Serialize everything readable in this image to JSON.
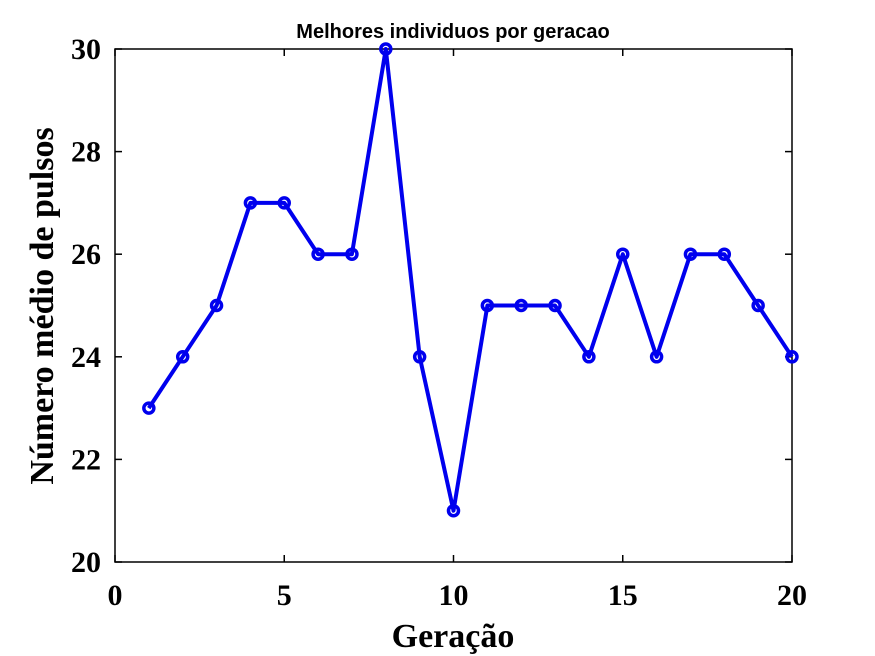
{
  "chart_data": {
    "type": "line",
    "title": "Melhores individuos por geracao",
    "xlabel": "Geração",
    "ylabel": "Número médio de pulsos",
    "xlim": [
      0,
      20
    ],
    "ylim": [
      20,
      30
    ],
    "xticks": [
      0,
      5,
      10,
      15,
      20
    ],
    "yticks": [
      20,
      22,
      24,
      26,
      28,
      30
    ],
    "grid": false,
    "series": [
      {
        "x": [
          1,
          2,
          3,
          4,
          5,
          6,
          7,
          8,
          9,
          10,
          11,
          12,
          13,
          14,
          15,
          16,
          17,
          18,
          19,
          20
        ],
        "values": [
          23,
          24,
          25,
          27,
          27,
          26,
          26,
          30,
          24,
          21,
          25,
          25,
          25,
          24,
          26,
          24,
          26,
          26,
          25,
          24
        ],
        "color": "#0000ee",
        "marker": "circle"
      }
    ]
  }
}
